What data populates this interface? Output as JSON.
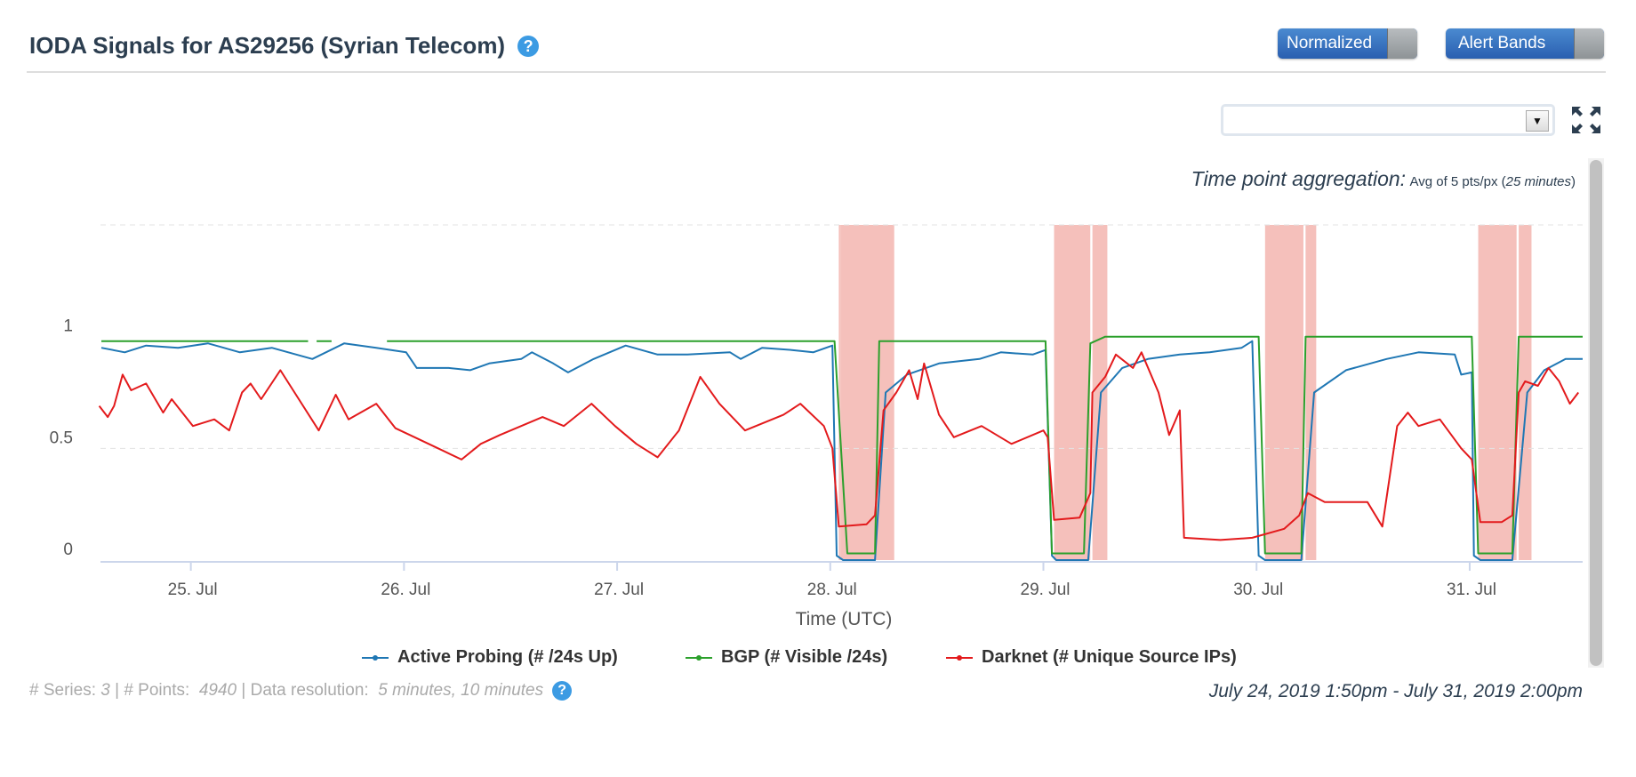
{
  "header": {
    "title": "IODA Signals for AS29256 (Syrian Telecom)",
    "help_icon": "?"
  },
  "toggles": {
    "normalized": "Normalized",
    "alert_bands": "Alert Bands"
  },
  "select": {
    "value": ""
  },
  "aggregation": {
    "label": "Time point aggregation:",
    "value_prefix": "Avg of 5 pts/px (",
    "value_italic": "25 minutes",
    "value_suffix": ")"
  },
  "footer": {
    "series_label": "# Series: ",
    "series_value": "3",
    "points_label": " | # Points: ",
    "points_value": "4940",
    "resolution_label": " | Data resolution: ",
    "resolution_value": "5 minutes, 10 minutes",
    "range": "July 24, 2019 1:50pm - July 31, 2019 2:00pm"
  },
  "chart_data": {
    "type": "line",
    "x_unit": "days since 24 Jul 2019 00:00 UTC",
    "xlabel": "Time (UTC)",
    "xlim": [
      0.576,
      7.53
    ],
    "ylim": [
      0,
      1.5
    ],
    "yticks": [
      {
        "v": 0,
        "label": "0"
      },
      {
        "v": 0.5,
        "label": "0.5"
      },
      {
        "v": 1,
        "label": "1"
      }
    ],
    "gridlines": [
      0.5,
      1.5
    ],
    "xticks": [
      {
        "v": 1,
        "label": "25. Jul"
      },
      {
        "v": 2,
        "label": "26. Jul"
      },
      {
        "v": 3,
        "label": "27. Jul"
      },
      {
        "v": 4,
        "label": "28. Jul"
      },
      {
        "v": 5,
        "label": "29. Jul"
      },
      {
        "v": 6,
        "label": "30. Jul"
      },
      {
        "v": 7,
        "label": "31. Jul"
      }
    ],
    "alert_bands": [
      [
        4.04,
        4.05
      ],
      [
        4.05,
        4.3
      ],
      [
        5.05,
        5.22
      ],
      [
        5.23,
        5.3
      ],
      [
        6.04,
        6.22
      ],
      [
        6.23,
        6.28
      ],
      [
        7.04,
        7.22
      ],
      [
        7.23,
        7.29
      ]
    ],
    "alert_color": "#f5c0bb",
    "legend_position": "bottom",
    "series": [
      {
        "name": "Active Probing (# /24s Up)",
        "color": "#1f77b4",
        "points": [
          [
            0.58,
            0.95
          ],
          [
            0.69,
            0.93
          ],
          [
            0.79,
            0.96
          ],
          [
            0.94,
            0.95
          ],
          [
            1.08,
            0.97
          ],
          [
            1.23,
            0.93
          ],
          [
            1.38,
            0.95
          ],
          [
            1.57,
            0.9
          ],
          [
            1.72,
            0.97
          ],
          [
            1.87,
            0.95
          ],
          [
            2.01,
            0.93
          ],
          [
            2.06,
            0.86
          ],
          [
            2.21,
            0.86
          ],
          [
            2.31,
            0.85
          ],
          [
            2.4,
            0.88
          ],
          [
            2.55,
            0.9
          ],
          [
            2.6,
            0.93
          ],
          [
            2.7,
            0.88
          ],
          [
            2.77,
            0.84
          ],
          [
            2.89,
            0.9
          ],
          [
            3.04,
            0.96
          ],
          [
            3.19,
            0.92
          ],
          [
            3.33,
            0.92
          ],
          [
            3.53,
            0.93
          ],
          [
            3.58,
            0.9
          ],
          [
            3.68,
            0.95
          ],
          [
            3.82,
            0.94
          ],
          [
            3.92,
            0.93
          ],
          [
            4.01,
            0.96
          ],
          [
            4.03,
            0.02
          ],
          [
            4.06,
            0
          ],
          [
            4.21,
            0
          ],
          [
            4.26,
            0.75
          ],
          [
            4.36,
            0.83
          ],
          [
            4.51,
            0.88
          ],
          [
            4.7,
            0.9
          ],
          [
            4.8,
            0.93
          ],
          [
            4.95,
            0.92
          ],
          [
            5.01,
            0.94
          ],
          [
            5.04,
            0.02
          ],
          [
            5.06,
            0
          ],
          [
            5.21,
            0
          ],
          [
            5.27,
            0.75
          ],
          [
            5.37,
            0.86
          ],
          [
            5.49,
            0.9
          ],
          [
            5.64,
            0.92
          ],
          [
            5.78,
            0.93
          ],
          [
            5.93,
            0.95
          ],
          [
            5.98,
            0.98
          ],
          [
            6.01,
            0.02
          ],
          [
            6.04,
            0
          ],
          [
            6.21,
            0
          ],
          [
            6.27,
            0.75
          ],
          [
            6.42,
            0.85
          ],
          [
            6.61,
            0.9
          ],
          [
            6.76,
            0.93
          ],
          [
            6.93,
            0.92
          ],
          [
            6.96,
            0.83
          ],
          [
            7.01,
            0.84
          ],
          [
            7.02,
            0.02
          ],
          [
            7.05,
            0
          ],
          [
            7.2,
            0
          ],
          [
            7.27,
            0.75
          ],
          [
            7.35,
            0.85
          ],
          [
            7.45,
            0.9
          ],
          [
            7.53,
            0.9
          ]
        ]
      },
      {
        "name": "BGP (# Visible /24s)",
        "color": "#2ca02c",
        "points": [
          [
            0.58,
            0.98
          ],
          [
            1.55,
            0.98
          ],
          null,
          [
            1.59,
            0.98
          ],
          [
            1.66,
            0.98
          ],
          null,
          [
            1.92,
            0.98
          ],
          [
            4.02,
            0.98
          ],
          [
            4.08,
            0.03
          ],
          [
            4.21,
            0.03
          ],
          [
            4.23,
            0.98
          ],
          [
            5.01,
            0.98
          ],
          [
            5.04,
            0.03
          ],
          [
            5.19,
            0.03
          ],
          [
            5.22,
            0.97
          ],
          [
            5.29,
            1.0
          ],
          [
            6.01,
            1.0
          ],
          [
            6.04,
            0.03
          ],
          [
            6.21,
            0.03
          ],
          [
            6.23,
            1.0
          ],
          [
            7.01,
            1.0
          ],
          [
            7.04,
            0.03
          ],
          [
            7.2,
            0.03
          ],
          [
            7.23,
            1.0
          ],
          [
            7.53,
            1.0
          ]
        ]
      },
      {
        "name": "Darknet (# Unique Source IPs)",
        "color": "#e31a1c",
        "points": [
          [
            0.57,
            0.69
          ],
          [
            0.61,
            0.64
          ],
          [
            0.64,
            0.69
          ],
          [
            0.68,
            0.83
          ],
          [
            0.72,
            0.76
          ],
          [
            0.79,
            0.79
          ],
          [
            0.87,
            0.66
          ],
          [
            0.91,
            0.72
          ],
          [
            1.01,
            0.6
          ],
          [
            1.11,
            0.63
          ],
          [
            1.18,
            0.58
          ],
          [
            1.24,
            0.75
          ],
          [
            1.28,
            0.79
          ],
          [
            1.33,
            0.72
          ],
          [
            1.42,
            0.85
          ],
          [
            1.48,
            0.76
          ],
          [
            1.6,
            0.58
          ],
          [
            1.68,
            0.74
          ],
          [
            1.74,
            0.63
          ],
          [
            1.87,
            0.7
          ],
          [
            1.96,
            0.59
          ],
          [
            2.05,
            0.55
          ],
          [
            2.16,
            0.5
          ],
          [
            2.27,
            0.45
          ],
          [
            2.36,
            0.52
          ],
          [
            2.45,
            0.56
          ],
          [
            2.55,
            0.6
          ],
          [
            2.65,
            0.64
          ],
          [
            2.75,
            0.6
          ],
          [
            2.88,
            0.7
          ],
          [
            2.99,
            0.6
          ],
          [
            3.09,
            0.52
          ],
          [
            3.19,
            0.46
          ],
          [
            3.29,
            0.58
          ],
          [
            3.39,
            0.82
          ],
          [
            3.48,
            0.7
          ],
          [
            3.6,
            0.58
          ],
          [
            3.78,
            0.65
          ],
          [
            3.86,
            0.7
          ],
          [
            3.97,
            0.6
          ],
          [
            4.01,
            0.5
          ],
          [
            4.04,
            0.15
          ],
          [
            4.17,
            0.16
          ],
          [
            4.21,
            0.2
          ],
          [
            4.25,
            0.67
          ],
          [
            4.31,
            0.75
          ],
          [
            4.37,
            0.85
          ],
          [
            4.41,
            0.72
          ],
          [
            4.44,
            0.88
          ],
          [
            4.51,
            0.65
          ],
          [
            4.58,
            0.55
          ],
          [
            4.71,
            0.6
          ],
          [
            4.85,
            0.52
          ],
          [
            5.0,
            0.58
          ],
          [
            5.02,
            0.55
          ],
          [
            5.05,
            0.18
          ],
          [
            5.17,
            0.19
          ],
          [
            5.22,
            0.3
          ],
          [
            5.23,
            0.75
          ],
          [
            5.29,
            0.82
          ],
          [
            5.34,
            0.92
          ],
          [
            5.42,
            0.86
          ],
          [
            5.46,
            0.93
          ],
          [
            5.54,
            0.75
          ],
          [
            5.59,
            0.56
          ],
          [
            5.64,
            0.67
          ],
          [
            5.66,
            0.1
          ],
          [
            5.83,
            0.09
          ],
          [
            5.98,
            0.1
          ],
          [
            6.13,
            0.14
          ],
          [
            6.2,
            0.2
          ],
          [
            6.24,
            0.3
          ],
          [
            6.32,
            0.26
          ],
          [
            6.52,
            0.26
          ],
          [
            6.59,
            0.15
          ],
          [
            6.66,
            0.6
          ],
          [
            6.71,
            0.66
          ],
          [
            6.76,
            0.6
          ],
          [
            6.86,
            0.63
          ],
          [
            6.96,
            0.5
          ],
          [
            7.01,
            0.45
          ],
          [
            7.05,
            0.17
          ],
          [
            7.15,
            0.17
          ],
          [
            7.2,
            0.2
          ],
          [
            7.23,
            0.75
          ],
          [
            7.26,
            0.8
          ],
          [
            7.32,
            0.78
          ],
          [
            7.37,
            0.86
          ],
          [
            7.42,
            0.8
          ],
          [
            7.47,
            0.7
          ],
          [
            7.51,
            0.75
          ]
        ]
      }
    ]
  }
}
